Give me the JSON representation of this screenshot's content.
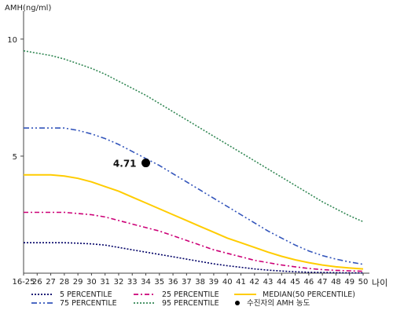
{
  "chart_data": {
    "type": "line",
    "ylabel": "AMH(ng/ml)",
    "xlabel": "나이",
    "ylim": [
      0,
      11
    ],
    "yticks": [
      5,
      10
    ],
    "categories": [
      "16-25",
      "26",
      "27",
      "28",
      "29",
      "30",
      "31",
      "32",
      "33",
      "34",
      "35",
      "36",
      "37",
      "38",
      "39",
      "40",
      "41",
      "42",
      "43",
      "44",
      "45",
      "46",
      "47",
      "48",
      "49",
      "50"
    ],
    "series": [
      {
        "name": "5 PERCENTILE",
        "color": "#000066",
        "dash": "2,2",
        "values": [
          1.3,
          1.3,
          1.3,
          1.3,
          1.28,
          1.25,
          1.2,
          1.1,
          1.0,
          0.9,
          0.8,
          0.7,
          0.6,
          0.5,
          0.4,
          0.32,
          0.25,
          0.18,
          0.13,
          0.09,
          0.06,
          0.04,
          0.03,
          0.02,
          0.015,
          0.01
        ]
      },
      {
        "name": "25 PERCENTILE",
        "color": "#cc0077",
        "dash": "6,3,2,3",
        "values": [
          2.6,
          2.6,
          2.6,
          2.6,
          2.55,
          2.5,
          2.4,
          2.25,
          2.1,
          1.95,
          1.8,
          1.6,
          1.4,
          1.2,
          1.0,
          0.85,
          0.7,
          0.55,
          0.45,
          0.35,
          0.27,
          0.2,
          0.15,
          0.12,
          0.1,
          0.08
        ]
      },
      {
        "name": "MEDIAN(50 PERCENTILE)",
        "color": "#ffcc00",
        "dash": "",
        "values": [
          4.2,
          4.2,
          4.2,
          4.15,
          4.05,
          3.9,
          3.7,
          3.5,
          3.25,
          3.0,
          2.75,
          2.5,
          2.25,
          2.0,
          1.75,
          1.5,
          1.3,
          1.1,
          0.9,
          0.72,
          0.57,
          0.45,
          0.35,
          0.27,
          0.22,
          0.18
        ]
      },
      {
        "name": "75 PERCENTILE",
        "color": "#3355bb",
        "dash": "7,3,2,3,2,3",
        "values": [
          6.2,
          6.2,
          6.2,
          6.2,
          6.1,
          5.95,
          5.75,
          5.5,
          5.2,
          4.9,
          4.6,
          4.25,
          3.9,
          3.55,
          3.2,
          2.85,
          2.5,
          2.15,
          1.8,
          1.5,
          1.2,
          0.95,
          0.75,
          0.6,
          0.48,
          0.38
        ]
      },
      {
        "name": "95 PERCENTILE",
        "color": "#338855",
        "dash": "2,2",
        "values": [
          9.5,
          9.4,
          9.3,
          9.15,
          8.95,
          8.75,
          8.5,
          8.2,
          7.9,
          7.6,
          7.25,
          6.9,
          6.55,
          6.2,
          5.85,
          5.5,
          5.15,
          4.8,
          4.45,
          4.1,
          3.75,
          3.4,
          3.05,
          2.75,
          2.45,
          2.2
        ]
      }
    ],
    "marker": {
      "label": "4.71",
      "x": "34",
      "y": 4.71,
      "color": "#000000"
    },
    "legend": [
      {
        "label": "5 PERCENTILE",
        "color": "#000066",
        "dash": "2,2",
        "type": "line"
      },
      {
        "label": "25 PERCENTILE",
        "color": "#cc0077",
        "dash": "6,3,2,3",
        "type": "line"
      },
      {
        "label": "MEDIAN(50 PERCENTILE)",
        "color": "#ffcc00",
        "dash": "",
        "type": "line"
      },
      {
        "label": "75 PERCENTILE",
        "color": "#3355bb",
        "dash": "7,3,2,3,2,3",
        "type": "line"
      },
      {
        "label": "95 PERCENTILE",
        "color": "#338855",
        "dash": "2,2",
        "type": "line"
      },
      {
        "label": "수진자의 AMH 농도",
        "color": "#000000",
        "dash": "",
        "type": "dot"
      }
    ]
  }
}
